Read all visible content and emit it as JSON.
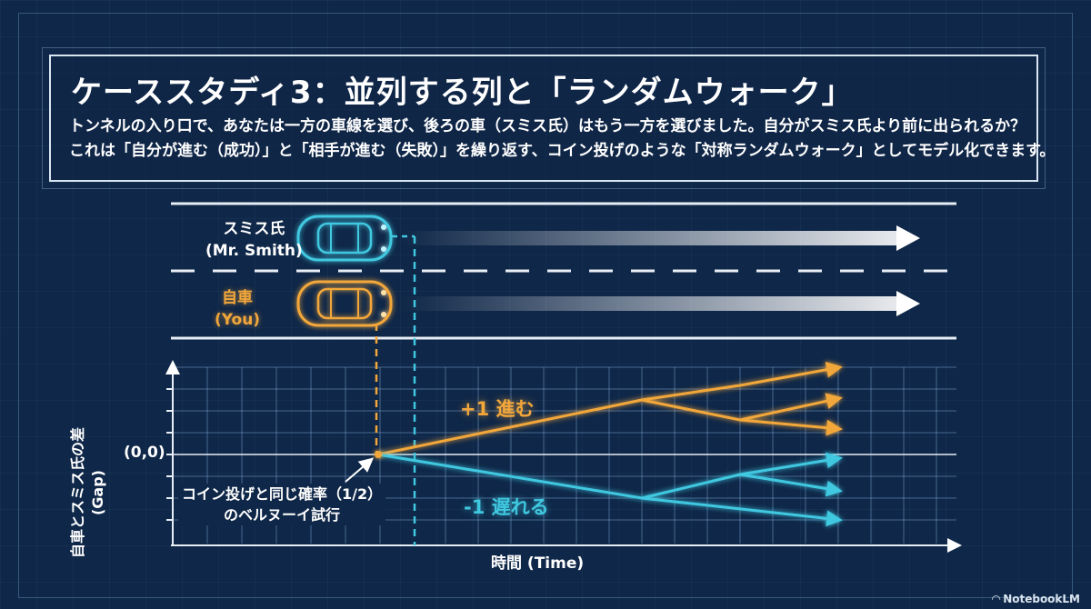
{
  "title": "ケーススタディ3：並列する列と「ランダムウォーク」",
  "description": {
    "line1": "トンネルの入り口で、あなたは一方の車線を選び、後ろの車（スミス氏）はもう一方を選びました。自分がスミス氏より前に出られるか？",
    "line2": "これは「自分が進む（成功）」と「相手が進む（失敗）」を繰り返す、コイン投げのような「対称ランダムウォーク」としてモデル化できます。"
  },
  "lanes": {
    "smith_label_line1": "スミス氏",
    "smith_label_line2": "(Mr. Smith)",
    "you_label_line1": "自車",
    "you_label_line2": "(You)"
  },
  "graph": {
    "y_axis_label_line1": "自車とスミス氏の差",
    "y_axis_label_line2": "(Gap)",
    "x_axis_label": "時間 (Time)",
    "origin_label": "(0,0)",
    "note_line1": "コイン投げと同じ確率（1/2）",
    "note_line2": "のベルヌーイ試行",
    "up_label": "+1 進む",
    "down_label": "-1 遅れる"
  },
  "colors": {
    "background": "#0f2748",
    "you": "#f2a73b",
    "smith": "#3fc8e0",
    "line": "#e8eef5"
  },
  "watermark": "NotebookLM"
}
